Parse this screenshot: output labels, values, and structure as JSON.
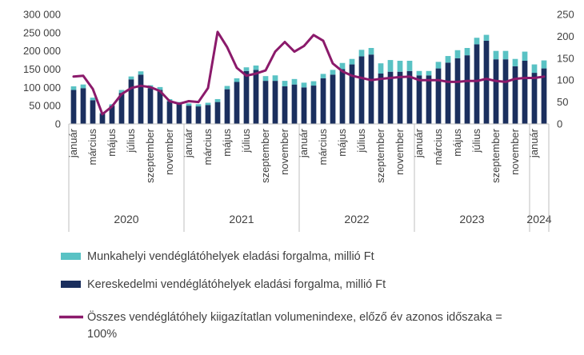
{
  "chart_data": {
    "type": "bar",
    "stacked": true,
    "x": [
      "2020-01",
      "2020-02",
      "2020-03",
      "2020-04",
      "2020-05",
      "2020-06",
      "2020-07",
      "2020-08",
      "2020-09",
      "2020-10",
      "2020-11",
      "2020-12",
      "2021-01",
      "2021-02",
      "2021-03",
      "2021-04",
      "2021-05",
      "2021-06",
      "2021-07",
      "2021-08",
      "2021-09",
      "2021-10",
      "2021-11",
      "2021-12",
      "2022-01",
      "2022-02",
      "2022-03",
      "2022-04",
      "2022-05",
      "2022-06",
      "2022-07",
      "2022-08",
      "2022-09",
      "2022-10",
      "2022-11",
      "2022-12",
      "2023-01",
      "2023-02",
      "2023-03",
      "2023-04",
      "2023-05",
      "2023-06",
      "2023-07",
      "2023-08",
      "2023-09",
      "2023-10",
      "2023-11",
      "2023-12",
      "2024-01",
      "2024-02"
    ],
    "month_labels": [
      "január",
      "március",
      "május",
      "július",
      "szeptember",
      "november"
    ],
    "month_label_positions": [
      0,
      2,
      4,
      6,
      8,
      10
    ],
    "years": [
      {
        "label": "2020",
        "start": 0,
        "count": 12
      },
      {
        "label": "2021",
        "start": 12,
        "count": 12
      },
      {
        "label": "2022",
        "start": 24,
        "count": 12
      },
      {
        "label": "2023",
        "start": 36,
        "count": 12
      },
      {
        "label": "2024",
        "start": 48,
        "count": 2
      }
    ],
    "series": [
      {
        "name": "Kereskedelmi vendéglátóhelyek eladási forgalma, millió Ft",
        "kind": "bar",
        "axis": "left",
        "color": "#1b2f5e",
        "values": [
          93000,
          98000,
          65000,
          28000,
          50000,
          85000,
          122000,
          135000,
          98000,
          93000,
          62000,
          55000,
          50000,
          48000,
          52000,
          60000,
          95000,
          115000,
          145000,
          148000,
          118000,
          118000,
          103000,
          108000,
          100000,
          105000,
          125000,
          135000,
          150000,
          163000,
          185000,
          190000,
          138000,
          143000,
          143000,
          145000,
          133000,
          133000,
          152000,
          168000,
          180000,
          188000,
          218000,
          228000,
          177000,
          177000,
          158000,
          173000,
          140000,
          152000
        ]
      },
      {
        "name": "Munkahelyi vendéglátóhelyek eladási forgalma, millió Ft",
        "kind": "bar",
        "axis": "left",
        "color": "#59c2c4",
        "values": [
          10000,
          10000,
          7000,
          3000,
          4000,
          8000,
          8000,
          9000,
          8000,
          8000,
          6000,
          5000,
          6000,
          6000,
          6000,
          8000,
          9000,
          10000,
          10000,
          12000,
          13000,
          15000,
          15000,
          15000,
          13000,
          12000,
          12000,
          13000,
          17000,
          15000,
          18000,
          18000,
          28000,
          32000,
          30000,
          28000,
          12000,
          12000,
          18000,
          18000,
          22000,
          20000,
          18000,
          16000,
          23000,
          23000,
          20000,
          25000,
          23000,
          22000
        ]
      },
      {
        "name": "Összes vendéglátóhely kiigazítatlan volumenindexe, előző év azonos időszaka = 100%",
        "kind": "line",
        "axis": "right",
        "color": "#8b1a6b",
        "values": [
          108,
          110,
          80,
          22,
          40,
          68,
          82,
          87,
          84,
          75,
          52,
          46,
          52,
          50,
          82,
          210,
          175,
          128,
          110,
          115,
          122,
          165,
          187,
          165,
          178,
          203,
          190,
          138,
          120,
          110,
          105,
          100,
          103,
          105,
          107,
          108,
          100,
          100,
          100,
          96,
          96,
          98,
          98,
          103,
          98,
          96,
          103,
          105,
          105,
          108
        ]
      }
    ],
    "left_axis": {
      "min": 0,
      "max": 300000,
      "ticks": [
        "0",
        "50 000",
        "100 000",
        "150 000",
        "200 000",
        "250 000",
        "300 000"
      ]
    },
    "right_axis": {
      "min": 0,
      "max": 250,
      "ticks": [
        "0",
        "50",
        "100",
        "150",
        "200",
        "250"
      ]
    },
    "legend": [
      {
        "key": "munkahelyi",
        "label": "Munkahelyi vendéglátóhelyek eladási forgalma, millió Ft",
        "color": "#59c2c4",
        "kind": "bar"
      },
      {
        "key": "kereskedelmi",
        "label": "Kereskedelmi vendéglátóhelyek eladási forgalma, millió Ft",
        "color": "#1b2f5e",
        "kind": "bar"
      },
      {
        "key": "volumenindex",
        "label": "Összes vendéglátóhely kiigazítatlan volumenindexe, előző év azonos időszaka =",
        "label_cont": "100%",
        "color": "#8b1a6b",
        "kind": "line"
      }
    ],
    "legend_position": "bottom"
  }
}
